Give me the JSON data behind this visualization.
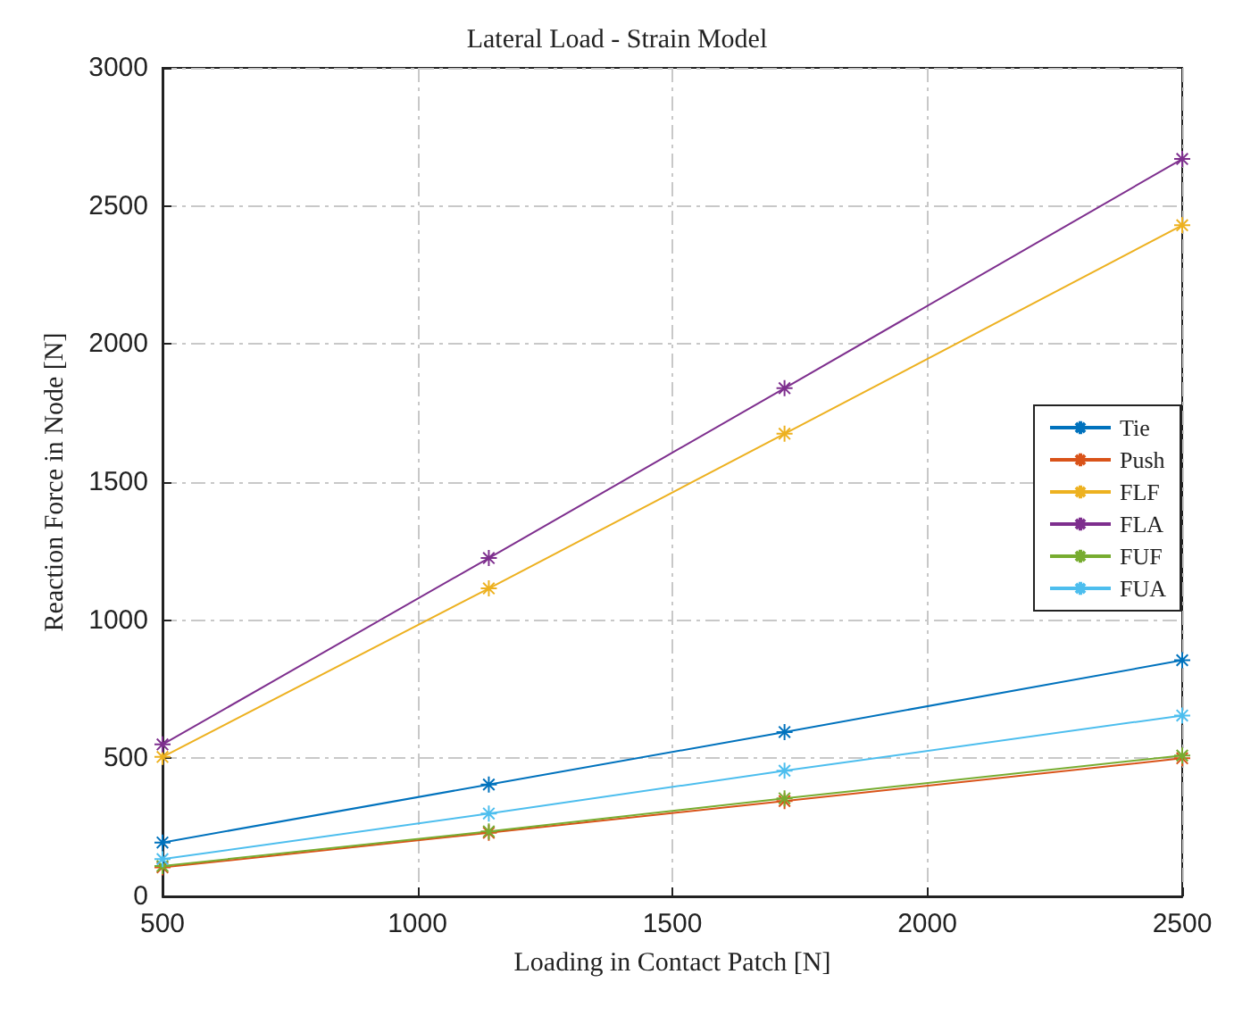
{
  "chart_data": {
    "type": "line",
    "title": "Lateral Load - Strain Model",
    "xlabel": "Loading in Contact Patch [N]",
    "ylabel": "Reaction Force in Node [N]",
    "x": [
      500,
      1140,
      1720,
      2500
    ],
    "series": [
      {
        "name": "Tie",
        "color": "#0072bd",
        "values": [
          195,
          405,
          595,
          855
        ]
      },
      {
        "name": "Push",
        "color": "#d95319",
        "values": [
          105,
          230,
          345,
          500
        ]
      },
      {
        "name": "FLF",
        "color": "#edb120",
        "values": [
          505,
          1115,
          1675,
          2430
        ]
      },
      {
        "name": "FLA",
        "color": "#7e2f8e",
        "values": [
          550,
          1225,
          1840,
          2670
        ]
      },
      {
        "name": "FUF",
        "color": "#77ac30",
        "values": [
          110,
          235,
          355,
          510
        ]
      },
      {
        "name": "FUA",
        "color": "#4dbeee",
        "values": [
          135,
          300,
          455,
          655
        ]
      }
    ],
    "xlim": [
      500,
      2500
    ],
    "xticks": [
      500,
      1000,
      1500,
      2000,
      2500
    ],
    "ylim": [
      0,
      3000
    ],
    "yticks": [
      0,
      500,
      1000,
      1500,
      2000,
      2500,
      3000
    ],
    "grid": true,
    "legend": "right",
    "marker": "cross",
    "line_style": "solid"
  }
}
